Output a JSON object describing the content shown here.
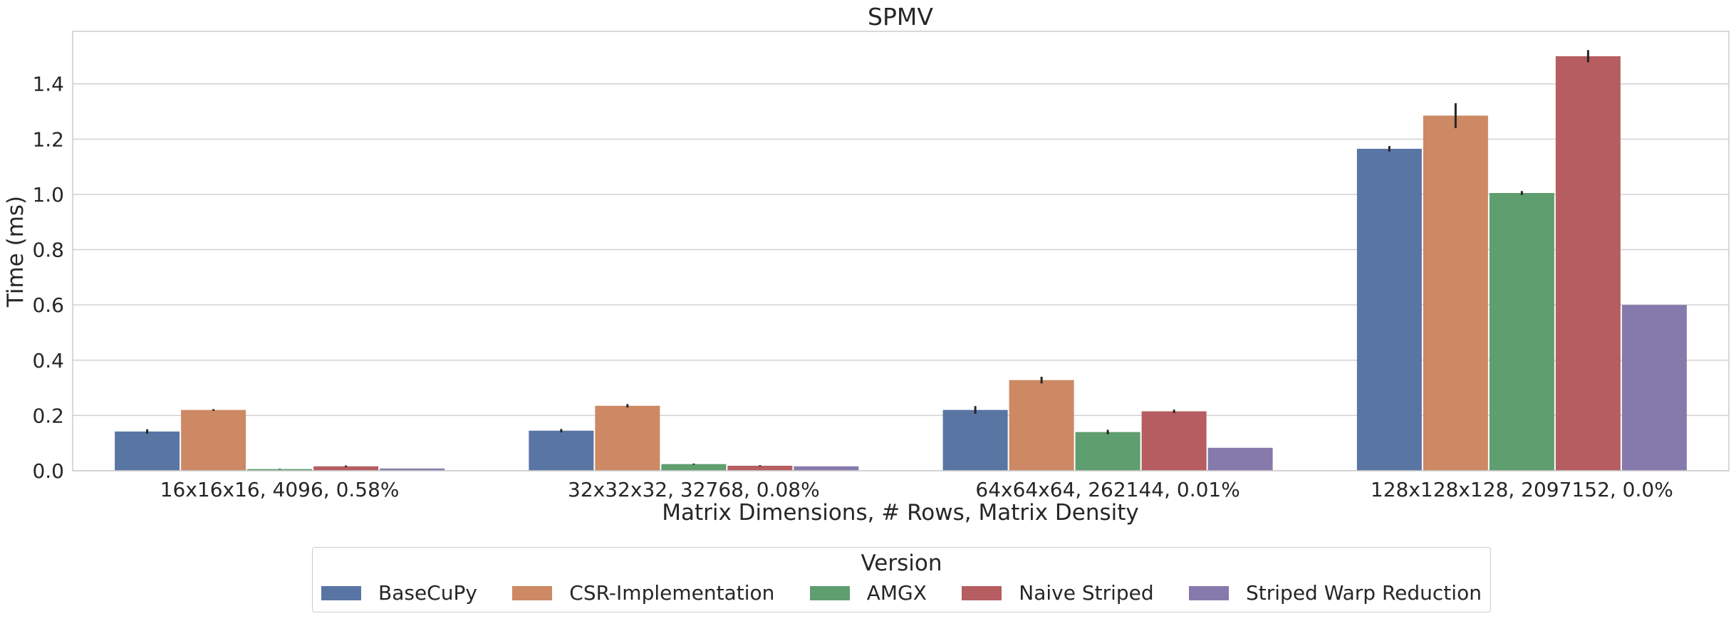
{
  "chart_data": {
    "type": "bar",
    "title": "SPMV",
    "xlabel": "Matrix Dimensions, # Rows, Matrix Density",
    "ylabel": "Time (ms)",
    "ylim": [
      0,
      1.59
    ],
    "yticks": [
      "0.0",
      "0.2",
      "0.4",
      "0.6",
      "0.8",
      "1.0",
      "1.2",
      "1.4"
    ],
    "grid": "horizontal",
    "legend_placement": "bottom-center",
    "legend_title": "Version",
    "categories": [
      "16x16x16, 4096, 0.58%",
      "32x32x32, 32768, 0.08%",
      "64x64x64, 262144, 0.01%",
      "128x128x128, 2097152, 0.0%"
    ],
    "series": [
      {
        "name": "BaseCuPy",
        "color": "#5975a4",
        "values": [
          0.142,
          0.145,
          0.22,
          1.165
        ],
        "err": [
          0.008,
          0.006,
          0.014,
          0.01
        ]
      },
      {
        "name": "CSR-Implementation",
        "color": "#cc8963",
        "values": [
          0.22,
          0.235,
          0.328,
          1.285
        ],
        "err": [
          0.003,
          0.006,
          0.012,
          0.045
        ]
      },
      {
        "name": "AMGX",
        "color": "#5f9e6e",
        "values": [
          0.006,
          0.024,
          0.14,
          1.005
        ],
        "err": [
          0.001,
          0.002,
          0.008,
          0.007
        ]
      },
      {
        "name": "Naive Striped",
        "color": "#b55d60",
        "values": [
          0.016,
          0.018,
          0.215,
          1.5
        ],
        "err": [
          0.003,
          0.002,
          0.006,
          0.022
        ]
      },
      {
        "name": "Striped Warp Reduction",
        "color": "#857aab",
        "values": [
          0.008,
          0.016,
          0.083,
          0.6
        ],
        "err": [
          0,
          0,
          0,
          0
        ]
      }
    ]
  }
}
